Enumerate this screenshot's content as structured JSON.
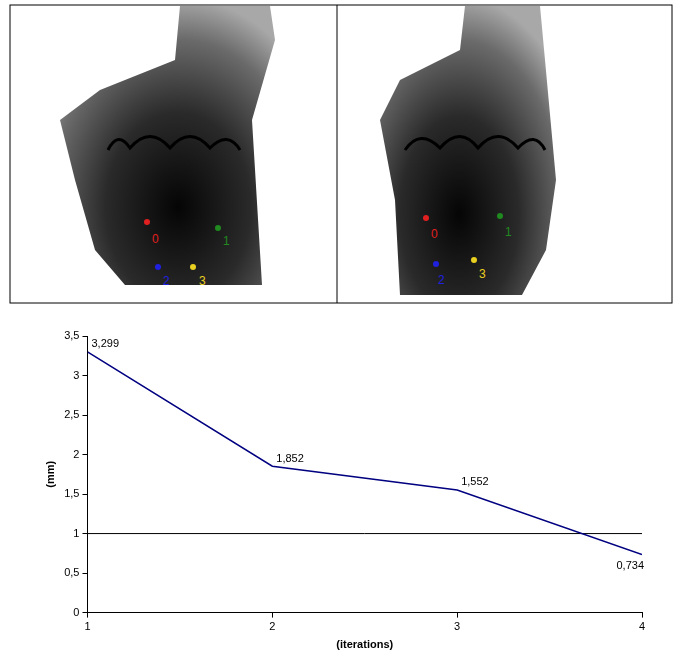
{
  "chart_data": {
    "type": "line",
    "x": [
      1,
      2,
      3,
      4
    ],
    "values": [
      3.299,
      1.852,
      1.552,
      0.734
    ],
    "value_labels": [
      "3,299",
      "1,852",
      "1,552",
      "0,734"
    ],
    "data_labels": true,
    "color": "#000080",
    "x_label": "(iterations)",
    "y_label": "(mm)",
    "xlim": [
      1,
      4
    ],
    "xticks": [
      1,
      2,
      3,
      4
    ],
    "ylim": [
      0,
      3.5
    ],
    "yticks": [
      0,
      {
        "value": 0.5,
        "label": "0,5"
      },
      1,
      {
        "value": 1.5,
        "label": "1,5"
      },
      2,
      {
        "value": 2.5,
        "label": "2,5"
      },
      3,
      {
        "value": 3.5,
        "label": "3,5"
      }
    ],
    "grid": false,
    "reference_line": 1
  },
  "panels": [
    {
      "points": [
        {
          "label": "0",
          "color": "#e02020"
        },
        {
          "label": "1",
          "color": "#208a20"
        },
        {
          "label": "2",
          "color": "#2020e0"
        },
        {
          "label": "3",
          "color": "#e8d020"
        }
      ]
    },
    {
      "points": [
        {
          "label": "0",
          "color": "#e02020"
        },
        {
          "label": "1",
          "color": "#208a20"
        },
        {
          "label": "2",
          "color": "#2020e0"
        },
        {
          "label": "3",
          "color": "#e8d020"
        }
      ]
    }
  ]
}
